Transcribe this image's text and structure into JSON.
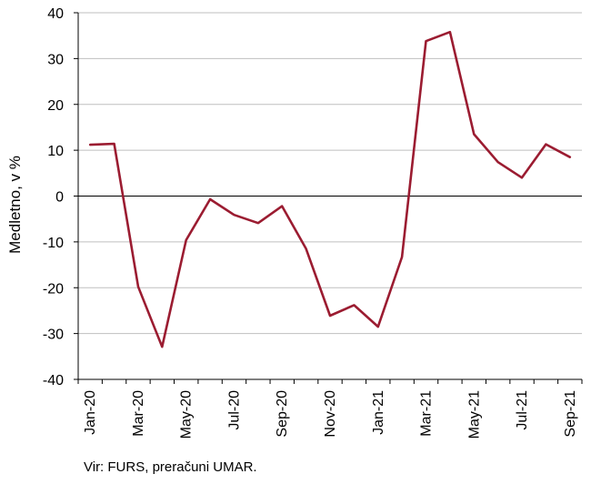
{
  "chart_data": {
    "type": "line",
    "title": "",
    "xlabel": "",
    "ylabel": "Medletno, v %",
    "ylim": [
      -40,
      40
    ],
    "yticks": [
      40,
      30,
      20,
      10,
      0,
      -10,
      -20,
      -30,
      -40
    ],
    "ytick_labels": [
      "40",
      "30",
      "20",
      "10",
      "0",
      "-10",
      "-20",
      "-30",
      "-40"
    ],
    "grid": true,
    "x": [
      "Jan-20",
      "Feb-20",
      "Mar-20",
      "Apr-20",
      "May-20",
      "Jun-20",
      "Jul-20",
      "Aug-20",
      "Sep-20",
      "Oct-20",
      "Nov-20",
      "Dec-20",
      "Jan-21",
      "Feb-21",
      "Mar-21",
      "Apr-21",
      "May-21",
      "Jun-21",
      "Jul-21",
      "Aug-21",
      "Sep-21"
    ],
    "xtick_labels": [
      "Jan-20",
      "Mar-20",
      "May-20",
      "Jul-20",
      "Sep-20",
      "Nov-20",
      "Jan-21",
      "Mar-21",
      "May-21",
      "Jul-21",
      "Sep-21"
    ],
    "series": [
      {
        "color": "#9b1c31",
        "values": [
          11.2,
          11.4,
          -19.8,
          -32.9,
          -9.6,
          -0.7,
          -4.1,
          -5.9,
          -2.2,
          -11.5,
          -26.1,
          -23.8,
          -28.5,
          -13.3,
          33.8,
          35.8,
          13.5,
          7.4,
          4.0,
          11.3,
          8.5
        ]
      }
    ]
  },
  "source_note": "Vir: FURS, preračuni UMAR."
}
